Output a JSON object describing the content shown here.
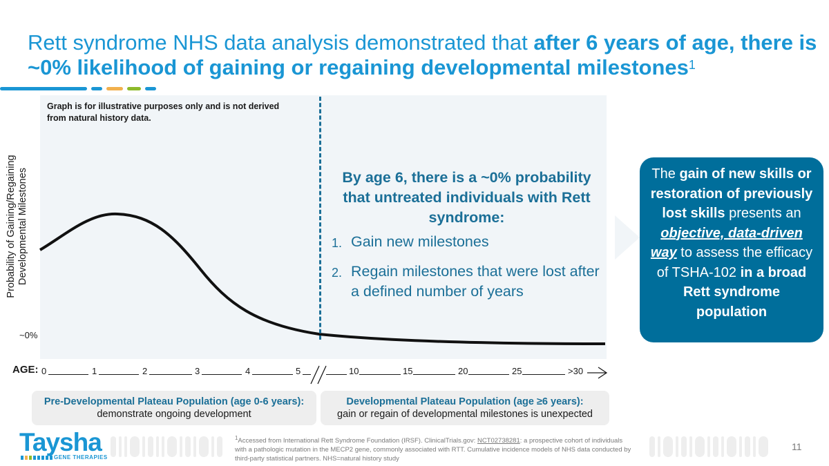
{
  "slide": {
    "title_plain": "Rett syndrome NHS data analysis demonstrated that ",
    "title_bold": "after 6 years of age, there is ~0% likelihood of gaining or regaining developmental milestones",
    "title_sup": "1",
    "page_number": "11"
  },
  "accent_colors": [
    "#1a96d4",
    "#1a96d4",
    "#f2b04d",
    "#8dba2b",
    "#1a96d4"
  ],
  "graph": {
    "disclaimer": "Graph is for illustrative purposes only and is not derived from natural history data.",
    "ylabel_line1": "Probability of Gaining/Regaining",
    "ylabel_line2": "Developmental Milestones",
    "zero_label": "~0%",
    "curve_color": "#111111",
    "divider_color": "#1b6f97",
    "age_label": "AGE:",
    "age_ticks": [
      "0",
      "1",
      "2",
      "3",
      "4",
      "5",
      "10",
      "15",
      "20",
      "25",
      ">30"
    ]
  },
  "callout": {
    "heading": "By age 6, there is a ~0% probability that untreated individuals with Rett syndrome:",
    "items": [
      {
        "num": "1.",
        "text": "Gain new milestones"
      },
      {
        "num": "2.",
        "text": "Regain milestones that were lost after a defined number of years"
      }
    ]
  },
  "bubble": {
    "p1": "The ",
    "b1": "gain of new skills or restoration of previously lost skills",
    "p2": " presents an ",
    "b2": "objective, data-driven way",
    "p3": " to assess the efficacy of TSHA-102 ",
    "b3": "in a broad Rett syndrome population",
    "color": "#006e9b"
  },
  "populations": [
    {
      "title": "Pre-Developmental Plateau Population (age 0-6 years):",
      "desc": "demonstrate ongoing development"
    },
    {
      "title": "Developmental Plateau Population (age ≥6 years):",
      "desc": "gain or regain of developmental milestones is unexpected"
    }
  ],
  "logo": {
    "name": "Taysha",
    "sub": "GENE THERAPIES"
  },
  "footnote": {
    "sup": "1",
    "part1": "Accessed from International Rett Syndrome Foundation (IRSF). ClinicalTrials.gov: ",
    "link": "NCT02738281",
    "part2": ": a prospective cohort of individuals with a pathologic mutation in the MECP2 gene, commonly associated with RTT. Cumulative incidence models of NHS data conducted by third-party statistical partners. NHS=natural history study"
  }
}
